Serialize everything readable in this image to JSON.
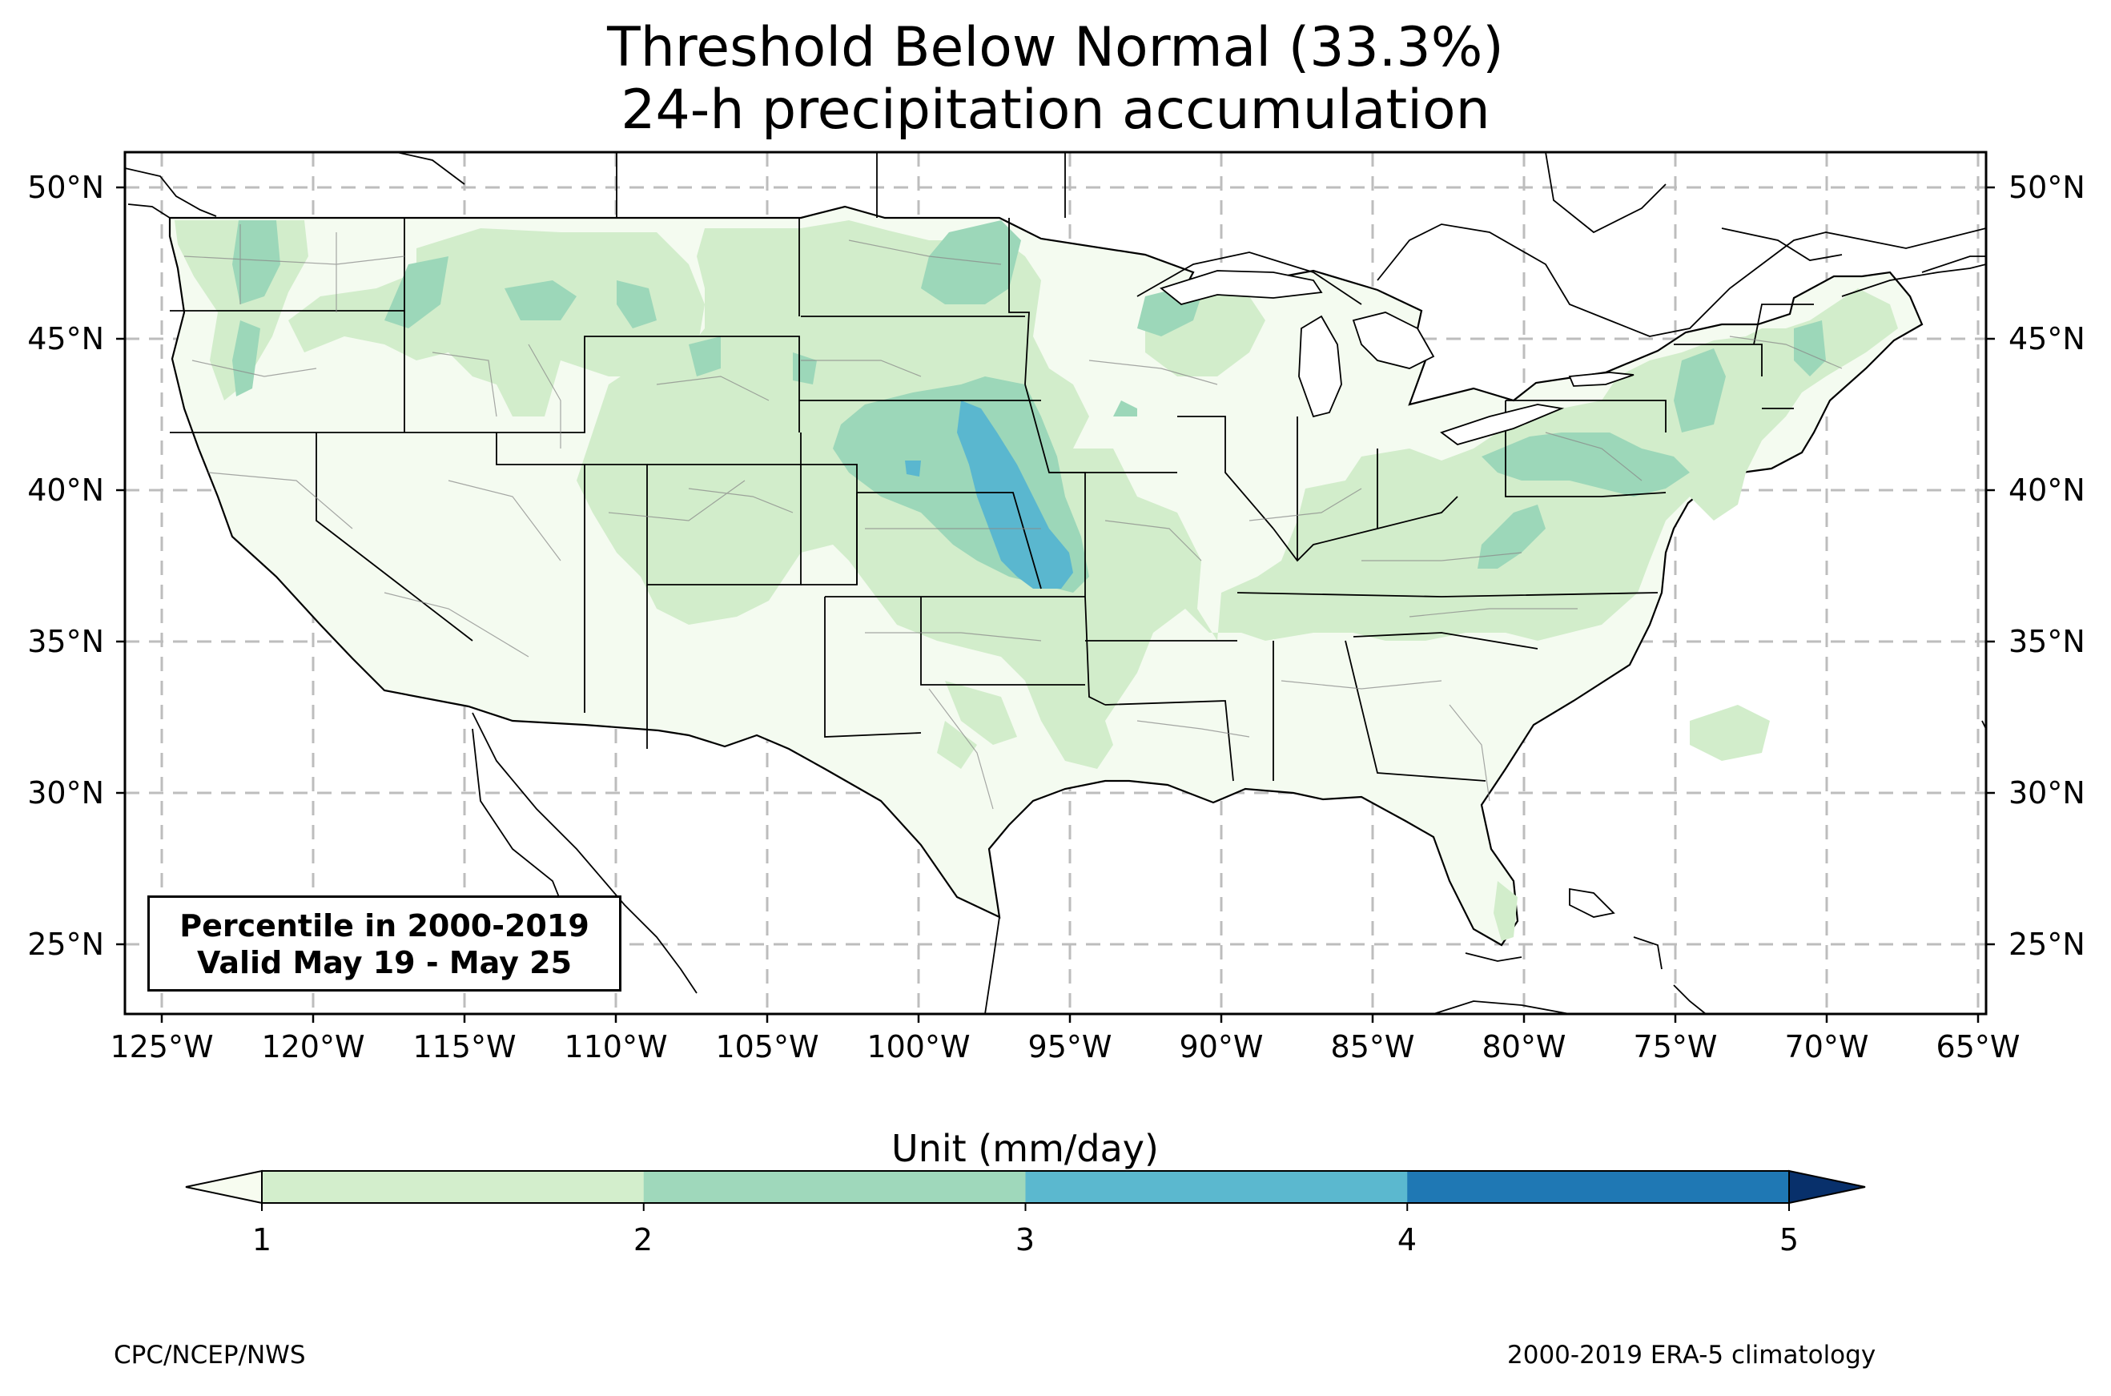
{
  "title": {
    "line1": "Threshold Below Normal (33.3%)",
    "line2": "24-h precipitation accumulation"
  },
  "map": {
    "projection": "PlateCarree",
    "extent": {
      "lon_min": -126.3,
      "lon_max": -64.8,
      "lat_min": 22.8,
      "lat_max": 51.2
    },
    "lon_ticks": [
      "125°W",
      "120°W",
      "115°W",
      "110°W",
      "105°W",
      "100°W",
      "95°W",
      "90°W",
      "85°W",
      "80°W",
      "75°W",
      "70°W",
      "65°W"
    ],
    "lat_ticks": [
      "50°N",
      "45°N",
      "40°N",
      "35°N",
      "30°N",
      "25°N"
    ],
    "gridlines": "dashed light gray",
    "base_fill_color": "#f4fbf0",
    "overlay_colors": {
      "band_1_2": "#d2edcb",
      "band_2_3": "#9cd7b9",
      "band_3_4": "#5ab7cf"
    }
  },
  "info_box": {
    "line1": "Percentile in 2000-2019",
    "line2": "Valid May 19 - May 25"
  },
  "colorbar": {
    "title": "Unit (mm/day)",
    "ticks": [
      "1",
      "2",
      "3",
      "4",
      "5"
    ],
    "colors": [
      "#f7fcf0",
      "#d3eecc",
      "#9fd8bb",
      "#5bb8cf",
      "#1f78b4",
      "#08306b"
    ],
    "extend": "both"
  },
  "credits": {
    "left": "CPC/NCEP/NWS",
    "right": "2000-2019 ERA-5 climatology"
  }
}
